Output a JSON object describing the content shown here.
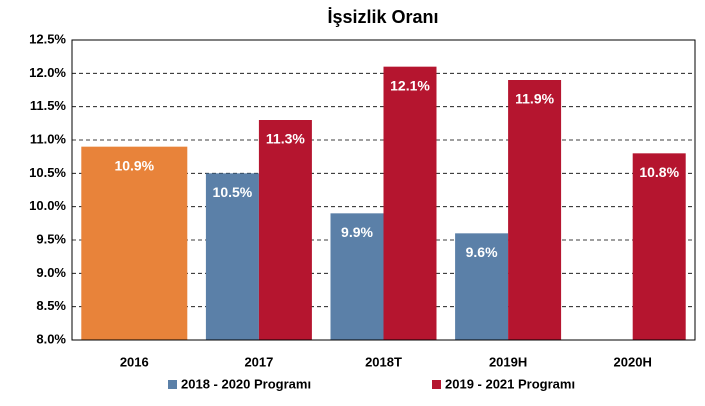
{
  "chart_data": {
    "type": "bar",
    "title": "İşsizlik Oranı",
    "categories": [
      "2016",
      "2017",
      "2018T",
      "2019H",
      "2020H"
    ],
    "actual": {
      "color": "#e8833a",
      "values": [
        10.9,
        null,
        null,
        null,
        null
      ],
      "value_labels": [
        "10.9%",
        null,
        null,
        null,
        null
      ]
    },
    "series": [
      {
        "name": "2018 - 2020 Programı",
        "color": "#5b80a8",
        "values": [
          null,
          10.5,
          9.9,
          9.6,
          null
        ],
        "value_labels": [
          null,
          "10.5%",
          "9.9%",
          "9.6%",
          null
        ]
      },
      {
        "name": "2019 - 2021 Programı",
        "color": "#b5152f",
        "values": [
          null,
          11.3,
          12.1,
          11.9,
          10.8
        ],
        "value_labels": [
          null,
          "11.3%",
          "12.1%",
          "11.9%",
          "10.8%"
        ]
      }
    ],
    "ylim": [
      8,
      12.5
    ],
    "yticks": [
      {
        "value": 8,
        "label": "8.0%"
      },
      {
        "value": 8.5,
        "label": "8.5%"
      },
      {
        "value": 9,
        "label": "9.0%"
      },
      {
        "value": 9.5,
        "label": "9.5%"
      },
      {
        "value": 10,
        "label": "10.0%"
      },
      {
        "value": 10.5,
        "label": "10.5%"
      },
      {
        "value": 11,
        "label": "11.0%"
      },
      {
        "value": 11.5,
        "label": "11.5%"
      },
      {
        "value": 12,
        "label": "12.0%"
      },
      {
        "value": 12.5,
        "label": "12.5%"
      }
    ],
    "grid": true,
    "legend": "bottom"
  }
}
